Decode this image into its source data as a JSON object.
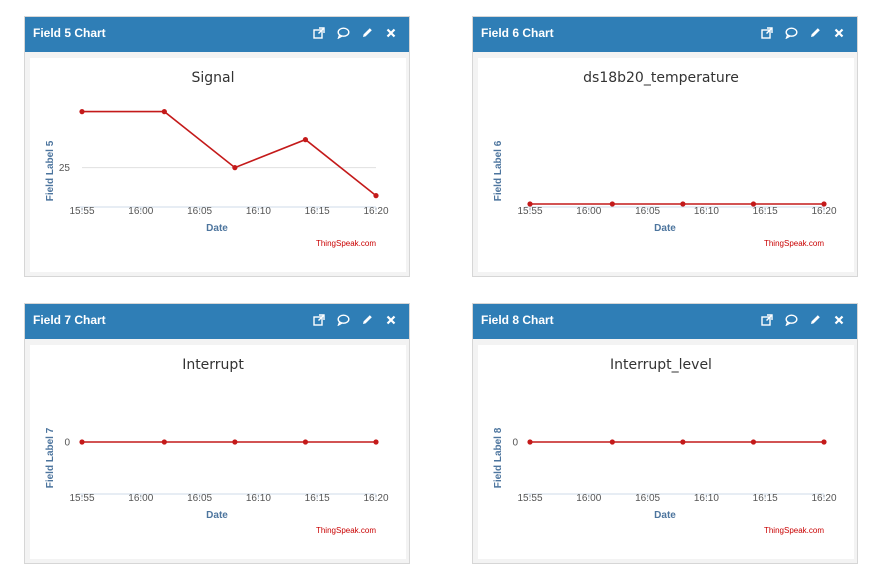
{
  "panels": [
    {
      "header": "Field 5 Chart"
    },
    {
      "header": "Field 6 Chart"
    },
    {
      "header": "Field 7 Chart"
    },
    {
      "header": "Field 8 Chart"
    }
  ],
  "tool_icons": [
    "external-link-icon",
    "comment-icon",
    "pencil-icon",
    "close-icon"
  ],
  "chart_data": [
    {
      "type": "line",
      "title": "Signal",
      "xlabel": "Date",
      "ylabel": "Field Label 5",
      "x_ticks": [
        "15:55",
        "16:00",
        "16:05",
        "16:10",
        "16:15",
        "16:20"
      ],
      "y_ticks": [
        "25"
      ],
      "x": [
        "15:55",
        "16:02",
        "16:08",
        "16:14",
        "16:20"
      ],
      "values": [
        27,
        27,
        25,
        26,
        24
      ],
      "ylim": [
        23.7,
        27.2
      ],
      "credit": "ThingSpeak.com",
      "color": "#c41a1a"
    },
    {
      "type": "line",
      "title": "ds18b20_temperature",
      "xlabel": "Date",
      "ylabel": "Field Label 6",
      "x_ticks": [
        "15:55",
        "16:00",
        "16:05",
        "16:10",
        "16:15",
        "16:20"
      ],
      "y_ticks": [],
      "x": [
        "15:55",
        "16:02",
        "16:08",
        "16:14",
        "16:20"
      ],
      "values": [
        0,
        0,
        0,
        0,
        0
      ],
      "ylim": [
        0,
        1
      ],
      "credit": "ThingSpeak.com",
      "color": "#c41a1a"
    },
    {
      "type": "line",
      "title": "Interrupt",
      "xlabel": "Date",
      "ylabel": "Field Label 7",
      "x_ticks": [
        "15:55",
        "16:00",
        "16:05",
        "16:10",
        "16:15",
        "16:20"
      ],
      "y_ticks": [
        "0"
      ],
      "x": [
        "15:55",
        "16:02",
        "16:08",
        "16:14",
        "16:20"
      ],
      "values": [
        0,
        0,
        0,
        0,
        0
      ],
      "ylim": [
        -1,
        1
      ],
      "credit": "ThingSpeak.com",
      "color": "#c41a1a"
    },
    {
      "type": "line",
      "title": "Interrupt_level",
      "xlabel": "Date",
      "ylabel": "Field Label 8",
      "x_ticks": [
        "15:55",
        "16:00",
        "16:05",
        "16:10",
        "16:15",
        "16:20"
      ],
      "y_ticks": [
        "0"
      ],
      "x": [
        "15:55",
        "16:02",
        "16:08",
        "16:14",
        "16:20"
      ],
      "values": [
        0,
        0,
        0,
        0,
        0
      ],
      "ylim": [
        -1,
        1
      ],
      "credit": "ThingSpeak.com",
      "color": "#c41a1a"
    }
  ]
}
